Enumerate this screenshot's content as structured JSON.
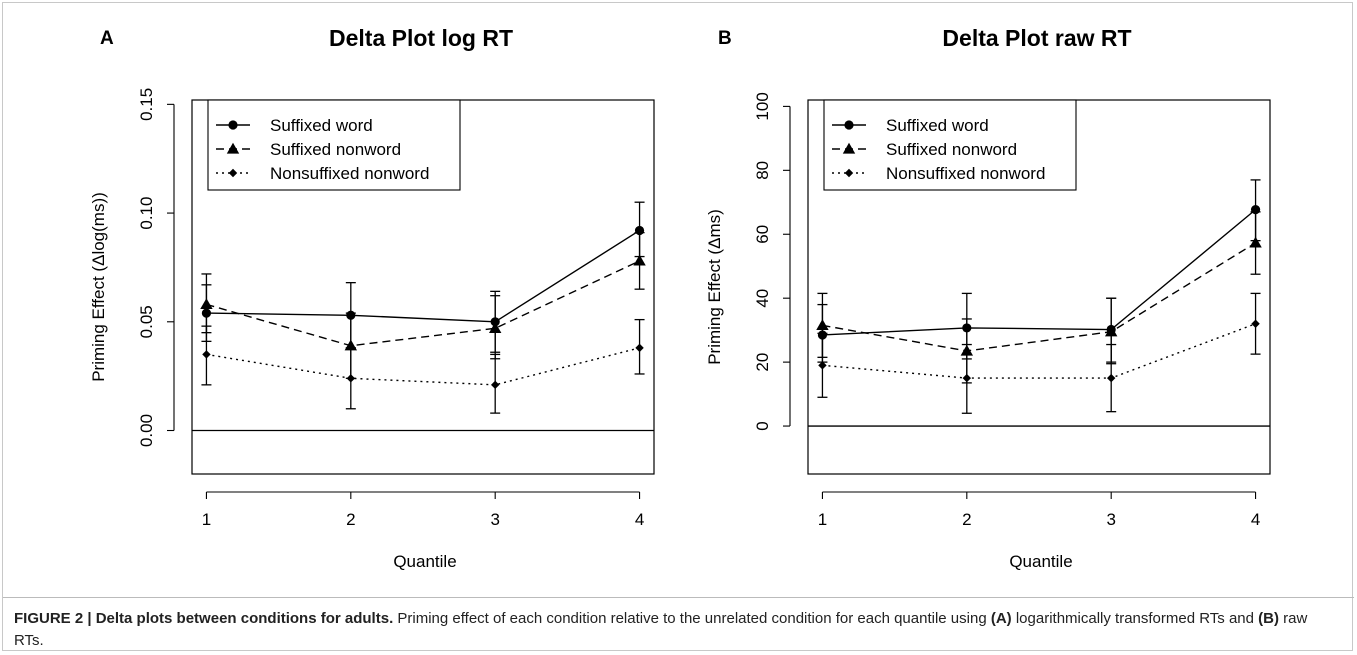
{
  "chart_data": [
    {
      "type": "line",
      "panel": "A",
      "title": "Delta Plot log RT",
      "xlabel": "Quantile",
      "ylabel": "Priming Effect (Δlog(ms))",
      "x": [
        1,
        2,
        3,
        4
      ],
      "xlim": [
        0.9,
        4.1
      ],
      "ylim": [
        -0.02,
        0.152
      ],
      "yticks": [
        0.0,
        0.05,
        0.1,
        0.15
      ],
      "ytick_labels": [
        "0.00",
        "0.05",
        "0.10",
        "0.15"
      ],
      "reference_line": 0,
      "grid": false,
      "legend_position": "top-left",
      "series": [
        {
          "name": "Suffixed word",
          "values": [
            0.054,
            0.053,
            0.05,
            0.092
          ],
          "err_low": [
            0.041,
            0.038,
            0.036,
            0.08
          ],
          "err_high": [
            0.067,
            0.068,
            0.064,
            0.105
          ],
          "marker": "circle",
          "dash": "solid"
        },
        {
          "name": "Suffixed nonword",
          "values": [
            0.058,
            0.039,
            0.047,
            0.078
          ],
          "err_low": [
            0.045,
            0.024,
            0.033,
            0.065
          ],
          "err_high": [
            0.072,
            0.054,
            0.062,
            0.091
          ],
          "marker": "triangle",
          "dash": "dashed"
        },
        {
          "name": "Nonsuffixed nonword",
          "values": [
            0.035,
            0.024,
            0.021,
            0.038
          ],
          "err_low": [
            0.021,
            0.01,
            0.008,
            0.026
          ],
          "err_high": [
            0.048,
            0.038,
            0.035,
            0.051
          ],
          "marker": "diamond",
          "dash": "dotted"
        }
      ]
    },
    {
      "type": "line",
      "panel": "B",
      "title": "Delta Plot raw RT",
      "xlabel": "Quantile",
      "ylabel": "Priming Effect (Δms)",
      "x": [
        1,
        2,
        3,
        4
      ],
      "xlim": [
        0.9,
        4.1
      ],
      "ylim": [
        -15,
        102
      ],
      "yticks": [
        0,
        20,
        40,
        60,
        80,
        100
      ],
      "ytick_labels": [
        "0",
        "20",
        "40",
        "60",
        "80",
        "100"
      ],
      "reference_line": 0,
      "grid": false,
      "legend_position": "top-left",
      "series": [
        {
          "name": "Suffixed word",
          "values": [
            28.5,
            30.7,
            30.2,
            67.7
          ],
          "err_low": [
            20,
            21,
            20,
            58
          ],
          "err_high": [
            38,
            41.5,
            40,
            77
          ],
          "marker": "circle",
          "dash": "solid"
        },
        {
          "name": "Suffixed nonword",
          "values": [
            31.5,
            23.5,
            29.5,
            57.3
          ],
          "err_low": [
            21.5,
            13.5,
            19.5,
            47.5
          ],
          "err_high": [
            41.5,
            33.5,
            40,
            67
          ],
          "marker": "triangle",
          "dash": "dashed"
        },
        {
          "name": "Nonsuffixed nonword",
          "values": [
            19,
            15,
            15,
            32
          ],
          "err_low": [
            9,
            4,
            4.5,
            22.5
          ],
          "err_high": [
            29,
            25.5,
            25.5,
            41.5
          ],
          "marker": "diamond",
          "dash": "dotted"
        }
      ]
    }
  ],
  "caption": {
    "label": "FIGURE 2 | Delta plots between conditions for adults.",
    "part1": " Priming effect of each condition relative to the unrelated condition for each quantile using ",
    "ref_a": "(A)",
    "part2": " logarithmically transformed RTs and ",
    "ref_b": "(B)",
    "part3": " raw RTs."
  },
  "colors": {
    "ink": "#000000",
    "frame": "#c8c8c8",
    "caption_text": "#222222"
  }
}
